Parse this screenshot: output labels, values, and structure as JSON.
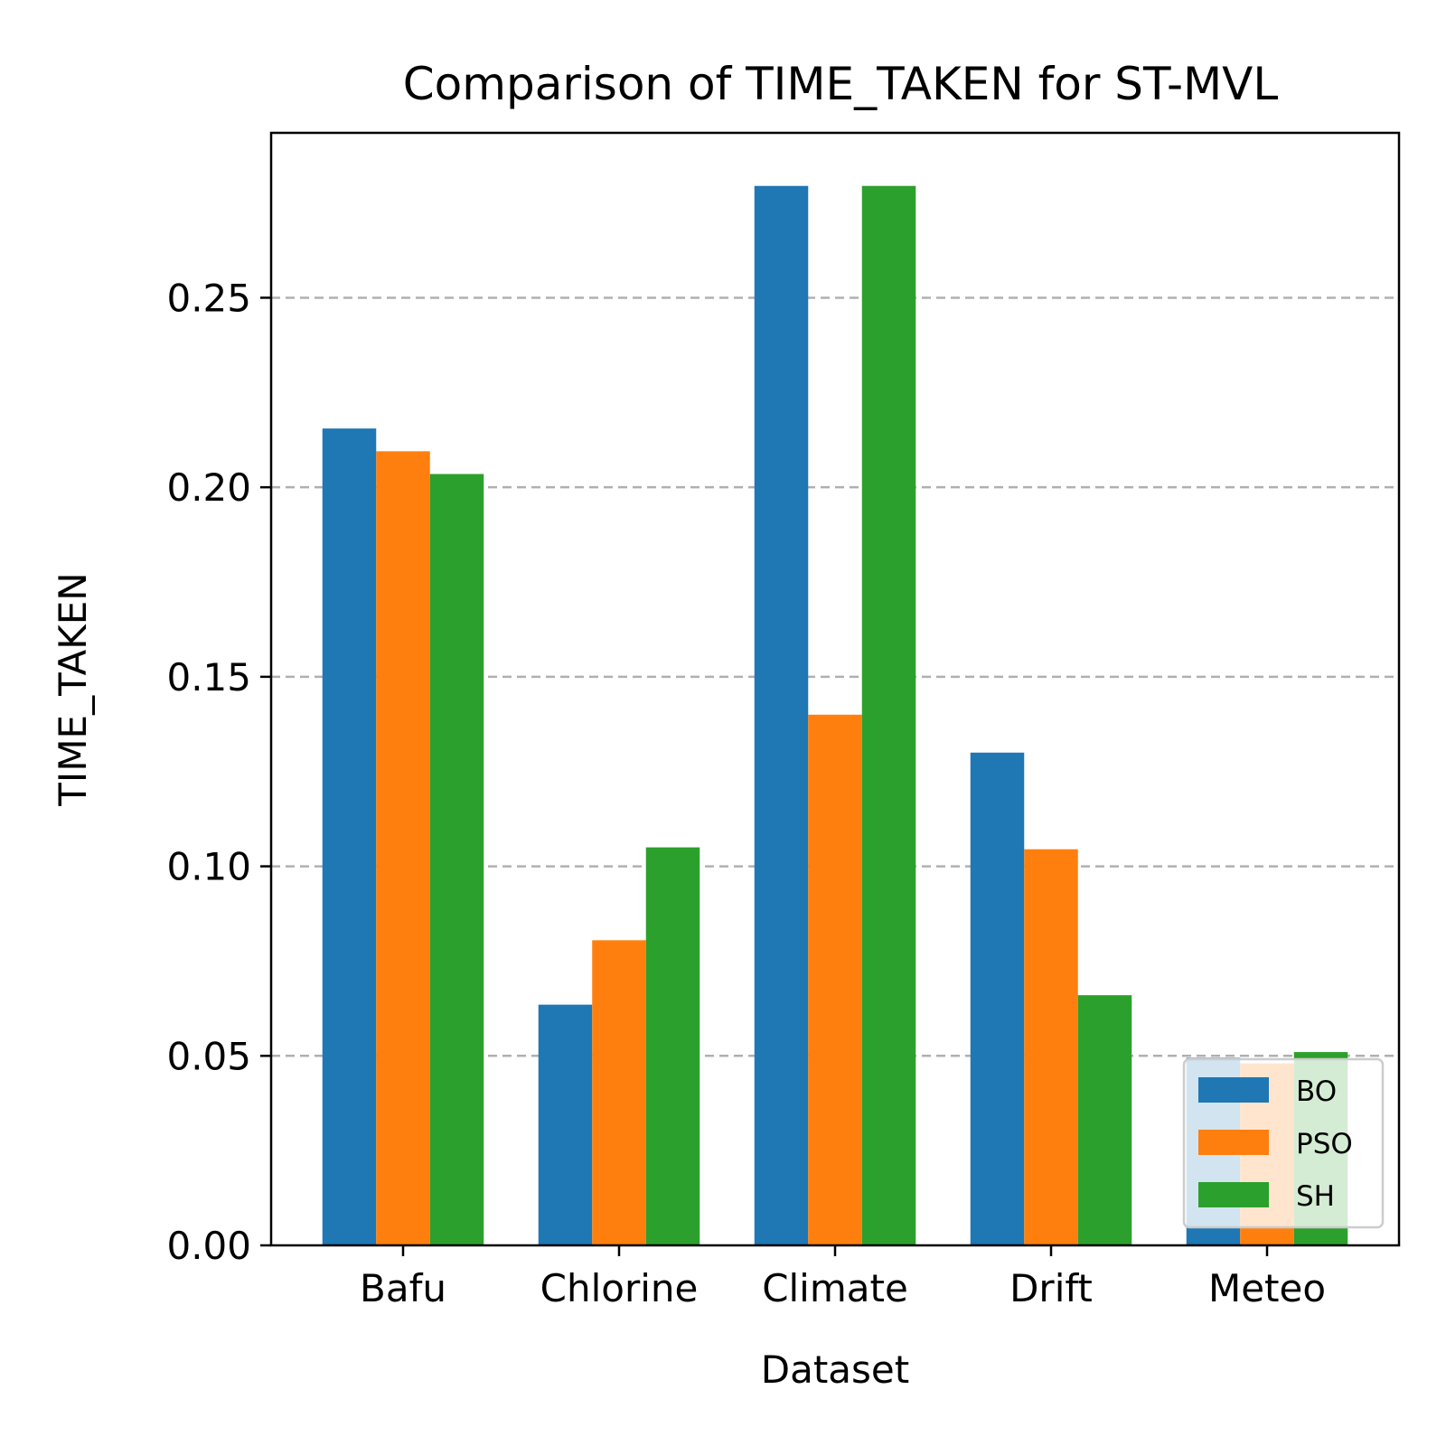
{
  "chart_data": {
    "type": "bar",
    "title": "Comparison of TIME_TAKEN for ST-MVL",
    "xlabel": "Dataset",
    "ylabel": "TIME_TAKEN",
    "categories": [
      "Bafu",
      "Chlorine",
      "Climate",
      "Drift",
      "Meteo"
    ],
    "series": [
      {
        "name": "BO",
        "color": "#1f77b4",
        "values": [
          0.2155,
          0.0635,
          0.2795,
          0.13,
          0.0495
        ]
      },
      {
        "name": "PSO",
        "color": "#ff7f0e",
        "values": [
          0.2095,
          0.0805,
          0.14,
          0.1045,
          0.048
        ]
      },
      {
        "name": "SH",
        "color": "#2ca02c",
        "values": [
          0.2035,
          0.105,
          0.2795,
          0.066,
          0.051
        ]
      }
    ],
    "ylim": [
      0,
      0.2935
    ],
    "yticks": [
      0.0,
      0.05,
      0.1,
      0.15,
      0.2,
      0.25
    ],
    "ytick_labels": [
      "0.00",
      "0.05",
      "0.10",
      "0.15",
      "0.20",
      "0.25"
    ],
    "grid": "y-dashed",
    "legend_position": "lower-right"
  }
}
